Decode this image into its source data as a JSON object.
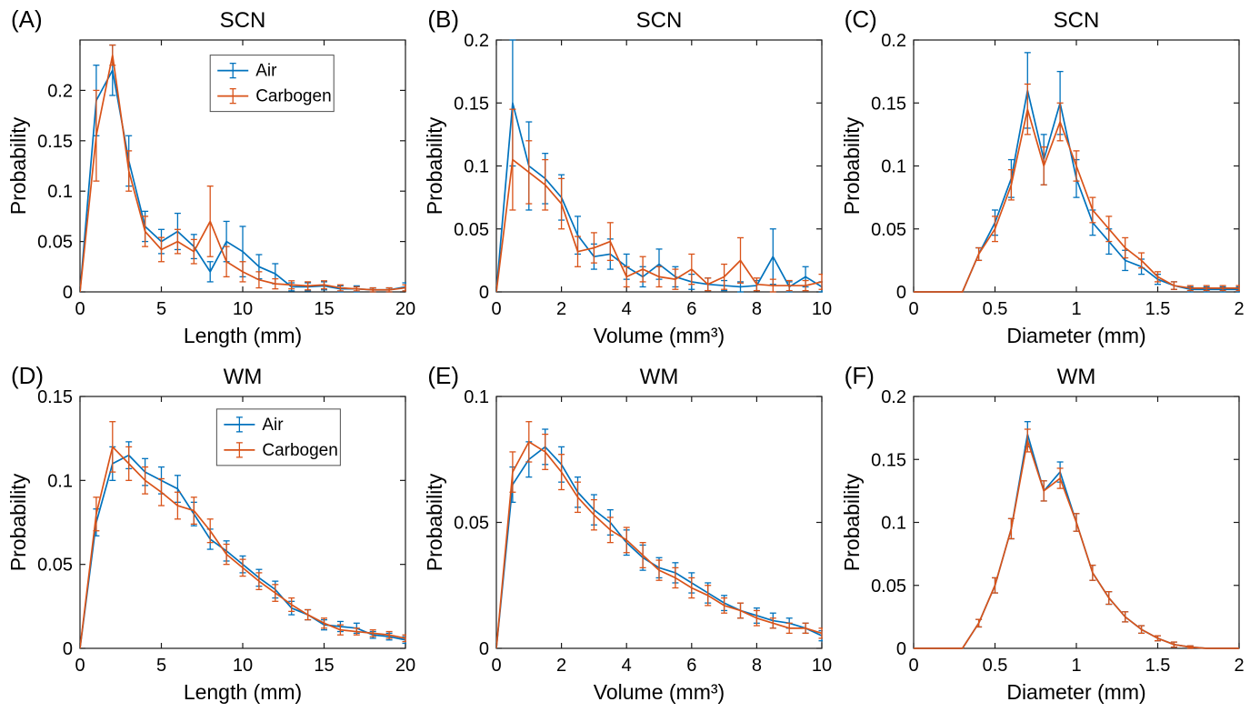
{
  "figure": {
    "colors": {
      "air": "#0072BD",
      "carbogen": "#D95319",
      "axis": "#1a1a1a",
      "background": "#ffffff",
      "legend_border": "#4d4d4d"
    },
    "legend": {
      "entries": [
        "Air",
        "Carbogen"
      ]
    }
  },
  "chart_data": [
    {
      "id": "A",
      "label": "(A)",
      "type": "line",
      "title": "SCN",
      "xlabel": "Length (mm)",
      "ylabel": "Probability",
      "xlim": [
        0,
        20
      ],
      "ylim": [
        0,
        0.25
      ],
      "xticks": [
        0,
        5,
        10,
        15,
        20
      ],
      "yticks": [
        0,
        0.05,
        0.1,
        0.15,
        0.2
      ],
      "legend": true,
      "legend_pos": [
        0.4,
        0.06
      ],
      "grid": false,
      "x": [
        0,
        1,
        2,
        3,
        4,
        5,
        6,
        7,
        8,
        9,
        10,
        11,
        12,
        13,
        14,
        15,
        16,
        17,
        18,
        19,
        20
      ],
      "series": [
        {
          "name": "Air",
          "color_key": "air",
          "y": [
            0,
            0.19,
            0.22,
            0.13,
            0.065,
            0.05,
            0.06,
            0.045,
            0.02,
            0.05,
            0.04,
            0.025,
            0.018,
            0.005,
            0.005,
            0.006,
            0.003,
            0.003,
            0.002,
            0.002,
            0.005
          ],
          "err": [
            0,
            0.035,
            0.025,
            0.025,
            0.015,
            0.012,
            0.018,
            0.012,
            0.01,
            0.02,
            0.025,
            0.012,
            0.01,
            0.004,
            0.004,
            0.004,
            0.003,
            0.003,
            0.002,
            0.002,
            0.004
          ]
        },
        {
          "name": "Carbogen",
          "color_key": "carbogen",
          "y": [
            0,
            0.155,
            0.235,
            0.12,
            0.06,
            0.042,
            0.05,
            0.04,
            0.07,
            0.03,
            0.02,
            0.012,
            0.008,
            0.007,
            0.006,
            0.007,
            0.004,
            0.003,
            0.002,
            0.002,
            0.004
          ],
          "err": [
            0,
            0.045,
            0.01,
            0.02,
            0.015,
            0.012,
            0.012,
            0.012,
            0.035,
            0.015,
            0.01,
            0.008,
            0.005,
            0.004,
            0.004,
            0.004,
            0.003,
            0.002,
            0.002,
            0.002,
            0.003
          ]
        }
      ]
    },
    {
      "id": "B",
      "label": "(B)",
      "type": "line",
      "title": "SCN",
      "xlabel": "Volume (mm³)",
      "ylabel": "Probability",
      "xlim": [
        0,
        10
      ],
      "ylim": [
        0,
        0.2
      ],
      "xticks": [
        0,
        2,
        4,
        6,
        8,
        10
      ],
      "yticks": [
        0,
        0.05,
        0.1,
        0.15,
        0.2
      ],
      "legend": false,
      "legend_pos": [
        0,
        0
      ],
      "grid": false,
      "x": [
        0,
        0.5,
        1,
        1.5,
        2,
        2.5,
        3,
        3.5,
        4,
        4.5,
        5,
        5.5,
        6,
        6.5,
        7,
        7.5,
        8,
        8.5,
        9,
        9.5,
        10
      ],
      "series": [
        {
          "name": "Air",
          "color_key": "air",
          "y": [
            0,
            0.15,
            0.1,
            0.09,
            0.075,
            0.045,
            0.028,
            0.03,
            0.02,
            0.012,
            0.022,
            0.012,
            0.008,
            0.006,
            0.005,
            0.004,
            0.005,
            0.028,
            0.004,
            0.012,
            0.004
          ],
          "err": [
            0,
            0.05,
            0.035,
            0.02,
            0.018,
            0.015,
            0.01,
            0.012,
            0.01,
            0.008,
            0.012,
            0.008,
            0.006,
            0.005,
            0.004,
            0.004,
            0.004,
            0.022,
            0.004,
            0.008,
            0.004
          ]
        },
        {
          "name": "Carbogen",
          "color_key": "carbogen",
          "y": [
            0,
            0.105,
            0.095,
            0.085,
            0.07,
            0.032,
            0.035,
            0.04,
            0.012,
            0.018,
            0.012,
            0.01,
            0.018,
            0.006,
            0.012,
            0.025,
            0.006,
            0.005,
            0.005,
            0.005,
            0.008
          ],
          "err": [
            0,
            0.04,
            0.025,
            0.02,
            0.02,
            0.012,
            0.012,
            0.015,
            0.008,
            0.01,
            0.008,
            0.008,
            0.012,
            0.005,
            0.01,
            0.018,
            0.005,
            0.005,
            0.004,
            0.004,
            0.006
          ]
        }
      ]
    },
    {
      "id": "C",
      "label": "(C)",
      "type": "line",
      "title": "SCN",
      "xlabel": "Diameter (mm)",
      "ylabel": "Probability",
      "xlim": [
        0,
        2
      ],
      "ylim": [
        0,
        0.2
      ],
      "xticks": [
        0,
        0.5,
        1,
        1.5,
        2
      ],
      "yticks": [
        0,
        0.05,
        0.1,
        0.15,
        0.2
      ],
      "legend": false,
      "legend_pos": [
        0,
        0
      ],
      "grid": false,
      "x": [
        0,
        0.1,
        0.2,
        0.3,
        0.4,
        0.5,
        0.6,
        0.7,
        0.8,
        0.9,
        1,
        1.1,
        1.2,
        1.3,
        1.4,
        1.5,
        1.6,
        1.7,
        1.8,
        1.9,
        2
      ],
      "series": [
        {
          "name": "Air",
          "color_key": "air",
          "y": [
            0,
            0,
            0,
            0,
            0.03,
            0.055,
            0.09,
            0.16,
            0.105,
            0.15,
            0.09,
            0.055,
            0.04,
            0.025,
            0.02,
            0.01,
            0.005,
            0.002,
            0.002,
            0.002,
            0.002
          ],
          "err": [
            0,
            0,
            0,
            0,
            0.005,
            0.01,
            0.015,
            0.03,
            0.02,
            0.025,
            0.015,
            0.01,
            0.01,
            0.008,
            0.006,
            0.004,
            0.003,
            0.002,
            0.002,
            0.002,
            0.002
          ]
        },
        {
          "name": "Carbogen",
          "color_key": "carbogen",
          "y": [
            0,
            0,
            0,
            0,
            0.03,
            0.05,
            0.085,
            0.145,
            0.1,
            0.135,
            0.1,
            0.065,
            0.05,
            0.035,
            0.025,
            0.012,
            0.005,
            0.003,
            0.003,
            0.003,
            0.003
          ],
          "err": [
            0,
            0,
            0,
            0,
            0.005,
            0.01,
            0.012,
            0.02,
            0.015,
            0.015,
            0.012,
            0.01,
            0.01,
            0.008,
            0.006,
            0.004,
            0.003,
            0.002,
            0.002,
            0.002,
            0.002
          ]
        }
      ]
    },
    {
      "id": "D",
      "label": "(D)",
      "type": "line",
      "title": "WM",
      "xlabel": "Length (mm)",
      "ylabel": "Probability",
      "xlim": [
        0,
        20
      ],
      "ylim": [
        0,
        0.15
      ],
      "xticks": [
        0,
        5,
        10,
        15,
        20
      ],
      "yticks": [
        0,
        0.05,
        0.1,
        0.15
      ],
      "legend": true,
      "legend_pos": [
        0.42,
        0.05
      ],
      "grid": false,
      "x": [
        0,
        1,
        2,
        3,
        4,
        5,
        6,
        7,
        8,
        9,
        10,
        11,
        12,
        13,
        14,
        15,
        16,
        17,
        18,
        19,
        20
      ],
      "series": [
        {
          "name": "Air",
          "color_key": "air",
          "y": [
            0,
            0.075,
            0.11,
            0.115,
            0.105,
            0.1,
            0.095,
            0.08,
            0.065,
            0.058,
            0.05,
            0.042,
            0.035,
            0.024,
            0.02,
            0.014,
            0.013,
            0.012,
            0.008,
            0.007,
            0.005
          ],
          "err": [
            0,
            0.008,
            0.01,
            0.008,
            0.008,
            0.008,
            0.008,
            0.007,
            0.006,
            0.006,
            0.005,
            0.005,
            0.005,
            0.004,
            0.003,
            0.003,
            0.003,
            0.003,
            0.002,
            0.002,
            0.002
          ]
        },
        {
          "name": "Carbogen",
          "color_key": "carbogen",
          "y": [
            0,
            0.08,
            0.12,
            0.11,
            0.1,
            0.093,
            0.085,
            0.082,
            0.07,
            0.056,
            0.048,
            0.04,
            0.033,
            0.026,
            0.02,
            0.015,
            0.011,
            0.01,
            0.009,
            0.008,
            0.006
          ],
          "err": [
            0,
            0.01,
            0.015,
            0.01,
            0.008,
            0.008,
            0.008,
            0.008,
            0.007,
            0.006,
            0.005,
            0.005,
            0.005,
            0.004,
            0.003,
            0.003,
            0.003,
            0.002,
            0.002,
            0.002,
            0.002
          ]
        }
      ]
    },
    {
      "id": "E",
      "label": "(E)",
      "type": "line",
      "title": "WM",
      "xlabel": "Volume (mm³)",
      "ylabel": "Probability",
      "xlim": [
        0,
        10
      ],
      "ylim": [
        0,
        0.1
      ],
      "xticks": [
        0,
        2,
        4,
        6,
        8,
        10
      ],
      "yticks": [
        0,
        0.05,
        0.1
      ],
      "legend": false,
      "legend_pos": [
        0,
        0
      ],
      "grid": false,
      "x": [
        0,
        0.5,
        1,
        1.5,
        2,
        2.5,
        3,
        3.5,
        4,
        4.5,
        5,
        5.5,
        6,
        6.5,
        7,
        7.5,
        8,
        8.5,
        9,
        9.5,
        10
      ],
      "series": [
        {
          "name": "Air",
          "color_key": "air",
          "y": [
            0,
            0.065,
            0.075,
            0.08,
            0.073,
            0.062,
            0.055,
            0.05,
            0.042,
            0.036,
            0.032,
            0.03,
            0.026,
            0.022,
            0.018,
            0.015,
            0.013,
            0.011,
            0.01,
            0.008,
            0.005
          ],
          "err": [
            0,
            0.007,
            0.007,
            0.007,
            0.007,
            0.006,
            0.006,
            0.005,
            0.005,
            0.005,
            0.004,
            0.004,
            0.004,
            0.004,
            0.003,
            0.003,
            0.003,
            0.003,
            0.002,
            0.002,
            0.002
          ]
        },
        {
          "name": "Carbogen",
          "color_key": "carbogen",
          "y": [
            0,
            0.07,
            0.082,
            0.078,
            0.07,
            0.06,
            0.053,
            0.047,
            0.043,
            0.037,
            0.031,
            0.028,
            0.024,
            0.021,
            0.017,
            0.015,
            0.012,
            0.01,
            0.008,
            0.008,
            0.006
          ],
          "err": [
            0,
            0.008,
            0.008,
            0.007,
            0.007,
            0.006,
            0.006,
            0.005,
            0.005,
            0.005,
            0.004,
            0.004,
            0.004,
            0.004,
            0.003,
            0.003,
            0.003,
            0.002,
            0.002,
            0.002,
            0.002
          ]
        }
      ]
    },
    {
      "id": "F",
      "label": "(F)",
      "type": "line",
      "title": "WM",
      "xlabel": "Diameter (mm)",
      "ylabel": "Probability",
      "xlim": [
        0,
        2
      ],
      "ylim": [
        0,
        0.2
      ],
      "xticks": [
        0,
        0.5,
        1,
        1.5,
        2
      ],
      "yticks": [
        0,
        0.05,
        0.1,
        0.15,
        0.2
      ],
      "legend": false,
      "legend_pos": [
        0,
        0
      ],
      "grid": false,
      "x": [
        0,
        0.1,
        0.2,
        0.3,
        0.4,
        0.5,
        0.6,
        0.7,
        0.8,
        0.9,
        1,
        1.1,
        1.2,
        1.3,
        1.4,
        1.5,
        1.6,
        1.7,
        1.8,
        1.9,
        2
      ],
      "series": [
        {
          "name": "Air",
          "color_key": "air",
          "y": [
            0,
            0,
            0,
            0,
            0.02,
            0.05,
            0.095,
            0.17,
            0.125,
            0.14,
            0.1,
            0.06,
            0.04,
            0.025,
            0.015,
            0.008,
            0.003,
            0.001,
            0,
            0,
            0
          ],
          "err": [
            0,
            0,
            0,
            0,
            0.003,
            0.006,
            0.008,
            0.01,
            0.008,
            0.008,
            0.007,
            0.006,
            0.005,
            0.004,
            0.003,
            0.002,
            0.002,
            0.001,
            0,
            0,
            0
          ]
        },
        {
          "name": "Carbogen",
          "color_key": "carbogen",
          "y": [
            0,
            0,
            0,
            0,
            0.02,
            0.05,
            0.095,
            0.165,
            0.125,
            0.135,
            0.1,
            0.06,
            0.04,
            0.025,
            0.015,
            0.008,
            0.003,
            0.001,
            0,
            0,
            0
          ],
          "err": [
            0,
            0,
            0,
            0,
            0.003,
            0.006,
            0.008,
            0.009,
            0.008,
            0.008,
            0.007,
            0.006,
            0.005,
            0.004,
            0.003,
            0.002,
            0.002,
            0.001,
            0,
            0,
            0
          ]
        }
      ]
    }
  ]
}
